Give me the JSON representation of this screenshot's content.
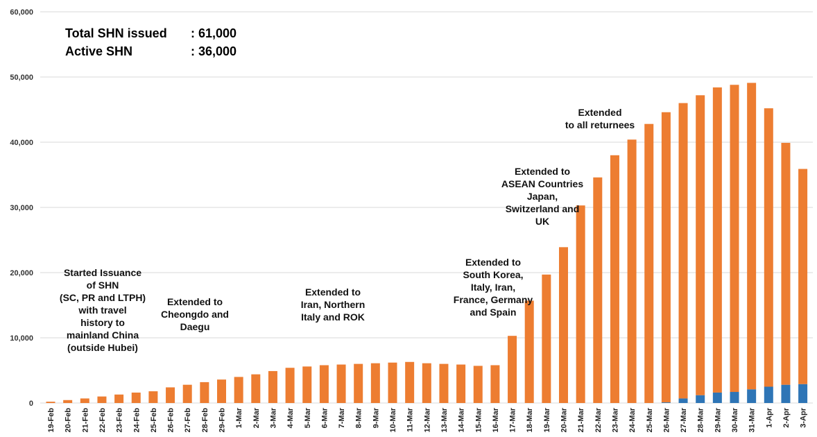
{
  "summary": {
    "rows": [
      {
        "label": "Total SHN issued",
        "value": ": 61,000"
      },
      {
        "label": "Active SHN",
        "value": ": 36,000"
      }
    ]
  },
  "chart_data": {
    "type": "bar",
    "stacked": true,
    "title": "",
    "xlabel": "",
    "ylabel": "",
    "ylim": [
      0,
      60000
    ],
    "yticks": [
      0,
      10000,
      20000,
      30000,
      40000,
      50000,
      60000
    ],
    "ytick_labels": [
      "0",
      "10,000",
      "20,000",
      "30,000",
      "40,000",
      "50,000",
      "60,000"
    ],
    "grid": true,
    "categories": [
      "19-Feb",
      "20-Feb",
      "21-Feb",
      "22-Feb",
      "23-Feb",
      "24-Feb",
      "25-Feb",
      "26-Feb",
      "27-Feb",
      "28-Feb",
      "29-Feb",
      "1-Mar",
      "2-Mar",
      "3-Mar",
      "4-Mar",
      "5-Mar",
      "6-Mar",
      "7-Mar",
      "8-Mar",
      "9-Mar",
      "10-Mar",
      "11-Mar",
      "12-Mar",
      "13-Mar",
      "14-Mar",
      "15-Mar",
      "16-Mar",
      "17-Mar",
      "18-Mar",
      "19-Mar",
      "20-Mar",
      "21-Mar",
      "22-Mar",
      "23-Mar",
      "24-Mar",
      "25-Mar",
      "26-Mar",
      "27-Mar",
      "28-Mar",
      "29-Mar",
      "30-Mar",
      "31-Mar",
      "1-Apr",
      "2-Apr",
      "3-Apr"
    ],
    "series": [
      {
        "color": "#2e75b6",
        "values": [
          0,
          0,
          0,
          0,
          0,
          0,
          0,
          0,
          0,
          0,
          0,
          0,
          0,
          0,
          0,
          0,
          0,
          0,
          0,
          0,
          0,
          0,
          0,
          0,
          0,
          0,
          0,
          0,
          0,
          0,
          0,
          0,
          0,
          0,
          0,
          0,
          100,
          700,
          1200,
          1600,
          1700,
          2100,
          2500,
          2800,
          2900
        ]
      },
      {
        "color": "#ed7d31",
        "values": [
          200,
          450,
          700,
          1000,
          1300,
          1600,
          1800,
          2400,
          2800,
          3200,
          3600,
          4000,
          4400,
          4900,
          5400,
          5600,
          5800,
          5900,
          6000,
          6100,
          6200,
          6300,
          6100,
          6000,
          5900,
          5700,
          5800,
          10300,
          15700,
          19700,
          23900,
          30300,
          34600,
          38000,
          40400,
          42800,
          44500,
          45300,
          46000,
          46800,
          47100,
          47000,
          42700,
          37100,
          33000
        ]
      }
    ],
    "annotations": [
      {
        "lines": [
          "Started Issuance",
          "of SHN",
          "(SC, PR and LTPH)",
          "with travel",
          "history to",
          "mainland China",
          "(outside Hubei)"
        ]
      },
      {
        "lines": [
          "Extended to",
          "Cheongdo and",
          "Daegu"
        ]
      },
      {
        "lines": [
          "Extended to",
          "Iran, Northern",
          "Italy and ROK"
        ]
      },
      {
        "lines": [
          "Extended to",
          "South Korea,",
          "Italy, Iran,",
          "France, Germany",
          "and Spain"
        ]
      },
      {
        "lines": [
          "Extended to",
          "ASEAN Countries",
          "Japan,",
          "Switzerland and",
          "UK"
        ]
      },
      {
        "lines": [
          "Extended",
          "to all returnees"
        ]
      }
    ]
  }
}
